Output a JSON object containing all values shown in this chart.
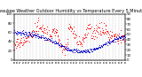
{
  "title": "Milwaukee Weather Outdoor Humidity vs Temperature Every 5 Minutes",
  "title_fontsize": 3.5,
  "bg_color": "#ffffff",
  "plot_bg_color": "#ffffff",
  "grid_color": "#aaaaaa",
  "red_color": "#ff0000",
  "blue_color": "#0000cc",
  "left_ylim": [
    0,
    100
  ],
  "right_ylim": [
    0,
    90
  ],
  "num_points": 288,
  "marker_size": 0.6,
  "figsize": [
    1.6,
    0.87
  ],
  "dpi": 100
}
